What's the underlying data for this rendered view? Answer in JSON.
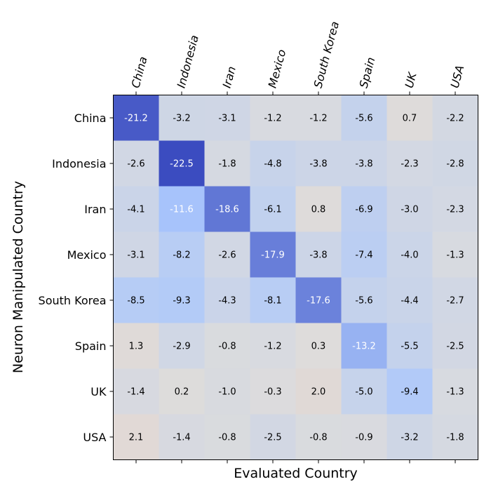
{
  "chart_data": {
    "type": "heatmap",
    "title": "",
    "xlabel": "Evaluated Country",
    "ylabel": "Neuron Manipulated Country",
    "x_categories": [
      "China",
      "Indonesia",
      "Iran",
      "Mexico",
      "South Korea",
      "Spain",
      "UK",
      "USA"
    ],
    "y_categories": [
      "China",
      "Indonesia",
      "Iran",
      "Mexico",
      "South Korea",
      "Spain",
      "UK",
      "USA"
    ],
    "values": [
      [
        -21.2,
        -3.2,
        -3.1,
        -1.2,
        -1.2,
        -5.6,
        0.7,
        -2.2
      ],
      [
        -2.6,
        -22.5,
        -1.8,
        -4.8,
        -3.8,
        -3.8,
        -2.3,
        -2.8
      ],
      [
        -4.1,
        -11.6,
        -18.6,
        -6.1,
        0.8,
        -6.9,
        -3.0,
        -2.3
      ],
      [
        -3.1,
        -8.2,
        -2.6,
        -17.9,
        -3.8,
        -7.4,
        -4.0,
        -1.3
      ],
      [
        -8.5,
        -9.3,
        -4.3,
        -8.1,
        -17.6,
        -5.6,
        -4.4,
        -2.7
      ],
      [
        1.3,
        -2.9,
        -0.8,
        -1.2,
        0.3,
        -13.2,
        -5.5,
        -2.5
      ],
      [
        -1.4,
        0.2,
        -1.0,
        -0.3,
        2.0,
        -5.0,
        -9.4,
        -1.3
      ],
      [
        2.1,
        -1.4,
        -0.8,
        -2.5,
        -0.8,
        -0.9,
        -3.2,
        -1.8
      ]
    ],
    "colormap": "coolwarm",
    "color_range": [
      -22.5,
      22.5
    ],
    "x_tick_rotation_deg": 75,
    "colors": {
      "cold": "#3b4cc0",
      "neutral": "#dddcdc",
      "warm": "#b40426"
    }
  }
}
